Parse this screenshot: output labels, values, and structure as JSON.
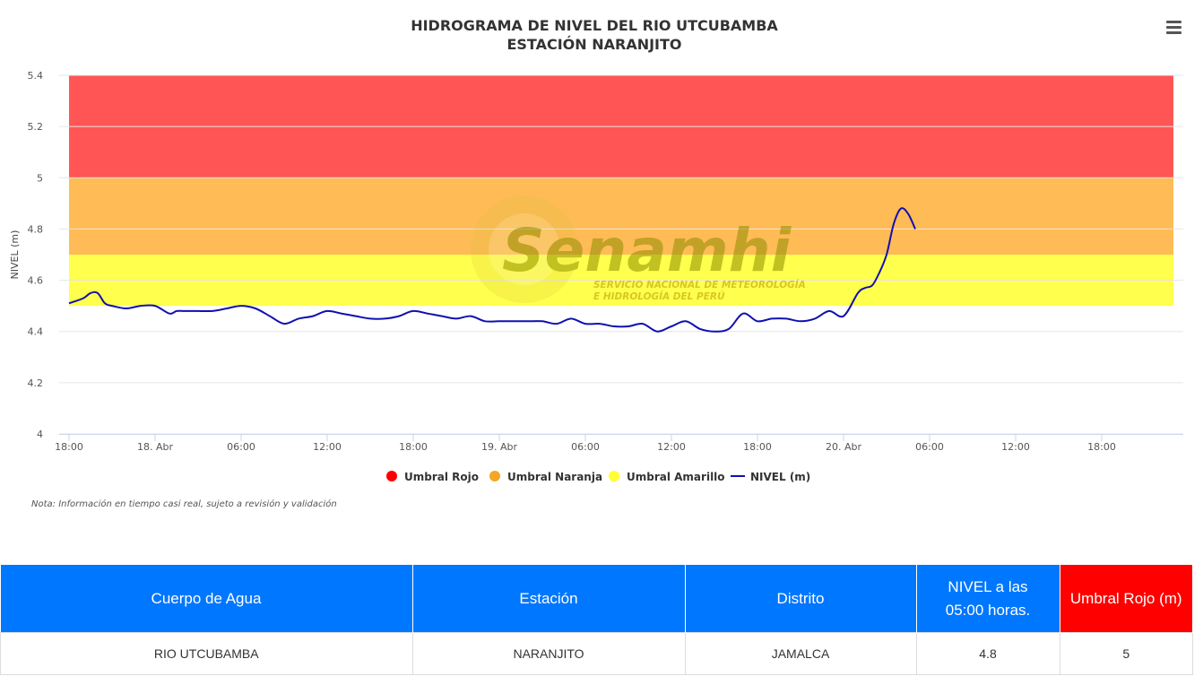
{
  "chart_data": {
    "type": "line",
    "title": "HIDROGRAMA DE NIVEL DEL RIO UTCUBAMBA",
    "subtitle": "ESTACIÓN NARANJITO",
    "ylabel": "NIVEL (m)",
    "xlabel": "",
    "ylim": [
      4,
      5.4
    ],
    "yticks": [
      "4",
      "4.2",
      "4.4",
      "4.6",
      "4.8",
      "5",
      "5.2",
      "5.4"
    ],
    "x_hours_range": [
      0,
      78
    ],
    "xticks": [
      {
        "h": 0,
        "label": "18:00"
      },
      {
        "h": 6,
        "label": "18. Abr"
      },
      {
        "h": 12,
        "label": "06:00"
      },
      {
        "h": 18,
        "label": "12:00"
      },
      {
        "h": 24,
        "label": "18:00"
      },
      {
        "h": 30,
        "label": "19. Abr"
      },
      {
        "h": 36,
        "label": "06:00"
      },
      {
        "h": 42,
        "label": "12:00"
      },
      {
        "h": 48,
        "label": "18:00"
      },
      {
        "h": 54,
        "label": "20. Abr"
      },
      {
        "h": 60,
        "label": "06:00"
      },
      {
        "h": 66,
        "label": "12:00"
      },
      {
        "h": 72,
        "label": "18:00"
      }
    ],
    "bands": [
      {
        "name": "Umbral Rojo",
        "from": 5.0,
        "to": 5.4,
        "color": "#ff5555"
      },
      {
        "name": "Umbral Naranja",
        "from": 4.7,
        "to": 5.0,
        "color": "#ffbb55"
      },
      {
        "name": "Umbral Amarillo",
        "from": 4.5,
        "to": 4.7,
        "color": "#ffff4d"
      }
    ],
    "series": [
      {
        "name": "NIVEL (m)",
        "color": "#1010b0",
        "x_hours": [
          0,
          1,
          1.5,
          2,
          2.5,
          3,
          4,
          5,
          6,
          7,
          7.5,
          8,
          8.5,
          9,
          10,
          11,
          12,
          13,
          14,
          15,
          16,
          17,
          18,
          19,
          20,
          21,
          22,
          23,
          24,
          25,
          26,
          27,
          28,
          29,
          30,
          31,
          32,
          33,
          34,
          35,
          36,
          37,
          38,
          39,
          40,
          41,
          42,
          43,
          44,
          45,
          46,
          47,
          48,
          49,
          50,
          51,
          52,
          53,
          54,
          55,
          55.5,
          56,
          56.5,
          57,
          57.5,
          58,
          58.5,
          59
        ],
        "values": [
          4.51,
          4.53,
          4.55,
          4.55,
          4.51,
          4.5,
          4.49,
          4.5,
          4.5,
          4.47,
          4.48,
          4.48,
          4.48,
          4.48,
          4.48,
          4.49,
          4.5,
          4.49,
          4.46,
          4.43,
          4.45,
          4.46,
          4.48,
          4.47,
          4.46,
          4.45,
          4.45,
          4.46,
          4.48,
          4.47,
          4.46,
          4.45,
          4.46,
          4.44,
          4.44,
          4.44,
          4.44,
          4.44,
          4.43,
          4.45,
          4.43,
          4.43,
          4.42,
          4.42,
          4.43,
          4.4,
          4.42,
          4.44,
          4.41,
          4.4,
          4.41,
          4.47,
          4.44,
          4.45,
          4.45,
          4.44,
          4.45,
          4.48,
          4.46,
          4.55,
          4.57,
          4.58,
          4.63,
          4.7,
          4.82,
          4.88,
          4.86,
          4.8
        ]
      }
    ],
    "legend": [
      "Umbral Rojo",
      "Umbral Naranja",
      "Umbral Amarillo",
      "NIVEL (m)"
    ],
    "legend_position": "bottom",
    "grid": true
  },
  "watermark": {
    "brand": "Senamhi",
    "line1": "SERVICIO NACIONAL DE METEOROLOGÍA",
    "line2": "E HIDROLOGÍA DEL PERÚ"
  },
  "note": "Nota: Información en tiempo casi real, sujeto a revisión y validación",
  "menu_icon": "hamburger-menu-icon",
  "table": {
    "headers": {
      "cuerpo": "Cuerpo de Agua",
      "estacion": "Estación",
      "distrito": "Distrito",
      "nivel_line1": "NIVEL a las",
      "nivel_line2": "05:00 horas.",
      "umbral": "Umbral Rojo (m)"
    },
    "row": {
      "cuerpo": "RIO UTCUBAMBA",
      "estacion": "NARANJITO",
      "distrito": "JAMALCA",
      "nivel": "4.8",
      "umbral": "5"
    }
  }
}
